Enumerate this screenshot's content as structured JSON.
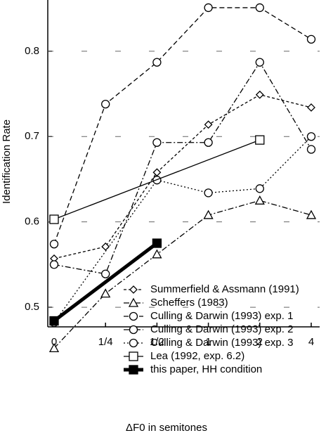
{
  "chart_data": {
    "type": "line",
    "x_label": "ΔF0 in semitones",
    "y_label": "Identification Rate",
    "categories": [
      "0",
      "1/4",
      "1/2",
      "1",
      "2",
      "4"
    ],
    "ylim": [
      0.477,
      0.86
    ],
    "yticks": [
      0.5,
      0.6,
      0.7,
      0.8
    ],
    "grid": true,
    "legend": "lower right",
    "series": [
      {
        "name": "Summerfield & Assmann (1991)",
        "color": "#000000",
        "marker": "diamond",
        "dash": "short",
        "values": [
          0.557,
          0.571,
          0.658,
          0.714,
          0.749,
          0.734
        ]
      },
      {
        "name": "Scheffers (1983)",
        "color": "#000000",
        "marker": "triangle",
        "dash": "dashdot",
        "values": [
          0.452,
          0.516,
          0.562,
          0.608,
          0.625,
          0.608
        ]
      },
      {
        "name": "Culling & Darwin (1993) exp. 1",
        "color": "#000000",
        "marker": "circle",
        "dash": "long",
        "values": [
          0.574,
          0.738,
          0.787,
          0.851,
          0.851,
          0.814
        ]
      },
      {
        "name": "Culling & Darwin (1993) exp. 2",
        "color": "#000000",
        "marker": "circle",
        "dash": "dashdot",
        "values": [
          0.55,
          0.539,
          0.693,
          0.693,
          0.787,
          0.685
        ]
      },
      {
        "name": "Culling & Darwin (1993) exp. 3",
        "color": "#000000",
        "marker": "circle",
        "dash": "dotted",
        "x": [
          "0",
          "1/2",
          "1",
          "2",
          "4"
        ],
        "values": [
          0.482,
          0.649,
          0.634,
          0.639,
          0.7
        ]
      },
      {
        "name": "Lea (1992, exp. 6.2)",
        "color": "#000000",
        "marker": "square",
        "dash": "solid",
        "x": [
          "0",
          "2"
        ],
        "values": [
          0.603,
          0.696
        ]
      },
      {
        "name": "this paper, HH condition",
        "color": "#000000",
        "marker": "filled-square",
        "dash": "thick",
        "x": [
          "0",
          "1/2"
        ],
        "values": [
          0.484,
          0.575
        ]
      }
    ]
  }
}
